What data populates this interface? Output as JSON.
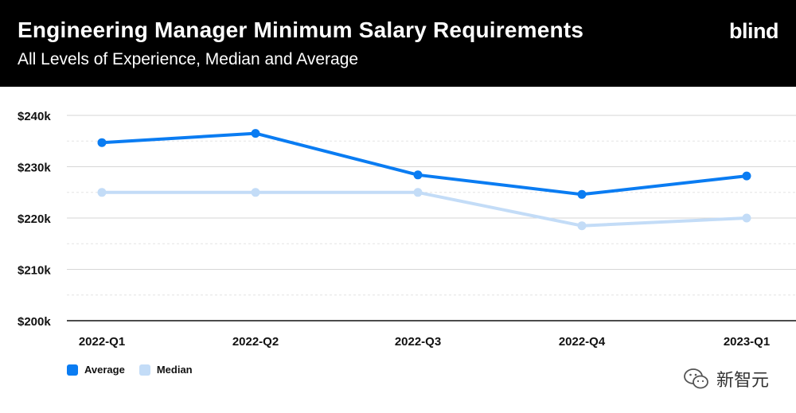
{
  "header": {
    "title": "Engineering Manager Minimum Salary Requirements",
    "subtitle": "All Levels of Experience, Median and Average",
    "brand": "blind"
  },
  "watermark": {
    "text": "新智元",
    "icon": "wechat-icon"
  },
  "colors": {
    "average": "#0a7cf2",
    "median": "#c3dcf7",
    "header_bg": "#000000"
  },
  "chart_data": {
    "type": "line",
    "title": "Engineering Manager Minimum Salary Requirements",
    "subtitle": "All Levels of Experience, Median and Average",
    "categories": [
      "2022-Q1",
      "2022-Q2",
      "2022-Q3",
      "2022-Q4",
      "2023-Q1"
    ],
    "series": [
      {
        "name": "Average",
        "color": "#0a7cf2",
        "values": [
          234700,
          236500,
          228400,
          224600,
          228200
        ]
      },
      {
        "name": "Median",
        "color": "#c3dcf7",
        "values": [
          225000,
          225000,
          225000,
          218500,
          220000
        ]
      }
    ],
    "ylim": [
      200000,
      240000
    ],
    "yticks": [
      240000,
      230000,
      220000,
      210000,
      200000
    ],
    "ytick_labels": [
      "$240k",
      "$230k",
      "$220k",
      "$210k",
      "$200k"
    ],
    "xlabel": "",
    "ylabel": "",
    "grid": true,
    "legend": "bottom-left"
  }
}
